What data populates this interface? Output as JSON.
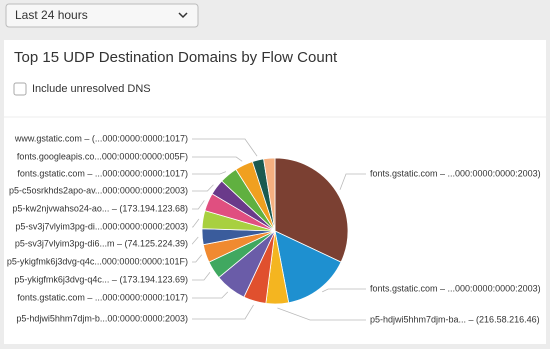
{
  "filter": {
    "label": "Last 24 hours"
  },
  "checkbox": {
    "label": "Include unresolved DNS",
    "checked": false
  },
  "chart_data": {
    "type": "pie",
    "title": "Top 15 UDP Destination Domains by Flow Count",
    "categories": [
      "fonts.gstatic.com – ...000:0000:0000:2003)",
      "fonts.gstatic.com – ...000:0000:0000:2003)",
      "p5-hdjwi5hhm7djm-ba... – (216.58.216.46)",
      "p5-hdjwi5hhm7djm-b...00:0000:0000:2003)",
      "fonts.gstatic.com – ...000:0000:0000:1017)",
      "p5-ykigfmk6j3dvg-q4c... – (173.194.123.69)",
      "p5-ykigfmk6j3dvg-q4c...000:0000:0000:101F)",
      "p5-sv3j7vlyim3pg-di6...m – (74.125.224.39)",
      "p5-sv3j7vlyim3pg-di...000:0000:0000:2003)",
      "p5-kw2njvwahso24-ao... – (173.194.123.68)",
      "p5-c5osrkhds2apo-av...000:0000:0000:2003)",
      "fonts.gstatic.com – ...000:0000:0000:1017)",
      "fonts.googleapis.co...000:0000:0000:005F)",
      "www.gstatic.com – (...000:0000:0000:1017)",
      null
    ],
    "values": [
      32,
      15,
      5,
      5,
      7,
      4,
      4,
      3.5,
      4,
      4,
      3.5,
      4,
      4,
      2.5,
      2.5
    ],
    "colors": [
      "#7b4032",
      "#1e90d0",
      "#f4b520",
      "#e0502e",
      "#6a5ca8",
      "#40a860",
      "#f08a30",
      "#3a5c9c",
      "#a8d040",
      "#e04f80",
      "#6a3a8a",
      "#60b040",
      "#f0a020",
      "#1a5a50",
      "#f5b080"
    ]
  }
}
